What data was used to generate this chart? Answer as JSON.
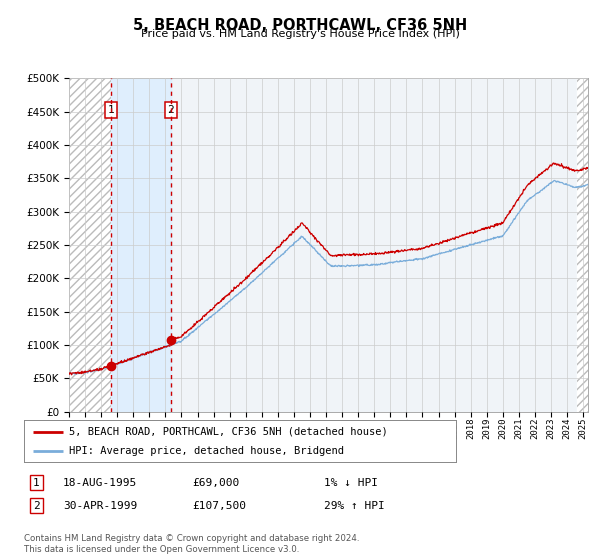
{
  "title": "5, BEACH ROAD, PORTHCAWL, CF36 5NH",
  "subtitle": "Price paid vs. HM Land Registry's House Price Index (HPI)",
  "legend_line1": "5, BEACH ROAD, PORTHCAWL, CF36 5NH (detached house)",
  "legend_line2": "HPI: Average price, detached house, Bridgend",
  "transaction1_date": "18-AUG-1995",
  "transaction1_price": "£69,000",
  "transaction1_hpi": "1% ↓ HPI",
  "transaction1_year": 1995.62,
  "transaction1_value": 69000,
  "transaction2_date": "30-APR-1999",
  "transaction2_price": "£107,500",
  "transaction2_hpi": "29% ↑ HPI",
  "transaction2_year": 1999.33,
  "transaction2_value": 107500,
  "footer": "Contains HM Land Registry data © Crown copyright and database right 2024.\nThis data is licensed under the Open Government Licence v3.0.",
  "line_red": "#cc0000",
  "line_blue": "#7aadda",
  "hatch_color": "#bbbbbb",
  "sale_bg": "#ddeeff",
  "ylim": [
    0,
    500000
  ],
  "yticks": [
    0,
    50000,
    100000,
    150000,
    200000,
    250000,
    300000,
    350000,
    400000,
    450000,
    500000
  ],
  "xlim_start": 1993.0,
  "xlim_end": 2025.3,
  "hatch_end": 2024.6,
  "grid_color": "#cccccc",
  "plot_bg": "#f0f4f8"
}
